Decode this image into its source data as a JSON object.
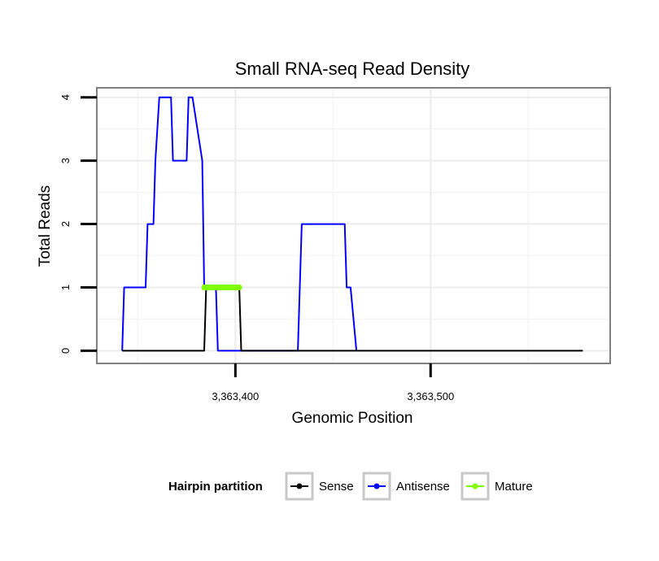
{
  "chart_data": {
    "type": "line",
    "title": "Small RNA-seq Read Density",
    "xlabel": "Genomic Position",
    "ylabel": "Total Reads",
    "xlim": [
      3363329,
      3363592
    ],
    "ylim": [
      -0.2,
      4.15
    ],
    "x_ticks": [
      3363400,
      3363500
    ],
    "x_tick_labels": [
      "3,363,400",
      "3,363,500"
    ],
    "y_ticks": [
      0,
      1,
      2,
      3,
      4
    ],
    "y_tick_labels": [
      "0",
      "1",
      "2",
      "3",
      "4"
    ],
    "grid": true,
    "legend_position": "bottom",
    "legend_title": "Hairpin partition",
    "series": [
      {
        "name": "Sense",
        "color": "#000000",
        "x": [
          3363342,
          3363384,
          3363385,
          3363402,
          3363403,
          3363578
        ],
        "y": [
          0,
          0,
          1,
          1,
          0,
          0
        ]
      },
      {
        "name": "Antisense",
        "color": "#0000ff",
        "x": [
          3363342,
          3363343,
          3363354,
          3363355,
          3363358,
          3363359,
          3363361,
          3363367,
          3363368,
          3363375,
          3363376,
          3363378,
          3363383,
          3363384,
          3363390,
          3363391,
          3363399,
          3363400,
          3363432,
          3363433,
          3363434,
          3363456,
          3363457,
          3363459,
          3363462
        ],
        "y": [
          0,
          1,
          1,
          2,
          2,
          3,
          4,
          4,
          3,
          3,
          4,
          4,
          3,
          1,
          1,
          0,
          0,
          0,
          0,
          1,
          2,
          2,
          1,
          1,
          0
        ]
      },
      {
        "name": "Mature",
        "color": "#7fff00",
        "x": [
          3363384,
          3363402
        ],
        "y": [
          1,
          1
        ]
      }
    ]
  }
}
